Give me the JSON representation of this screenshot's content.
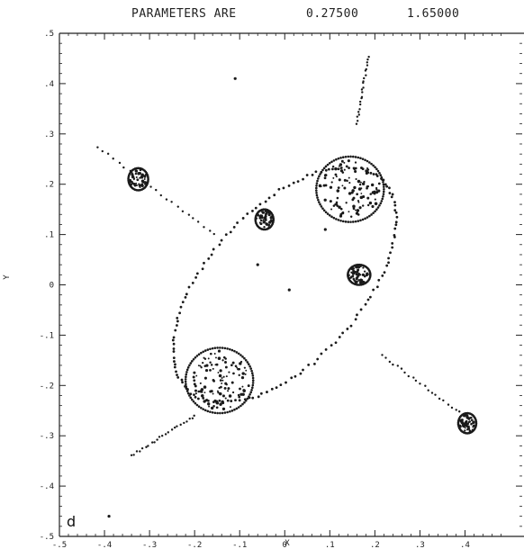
{
  "header": {
    "label": "PARAMETERS ARE",
    "param1": "0.27500",
    "param2": "1.65000"
  },
  "panel_letter": "d",
  "chart_data": {
    "type": "scatter",
    "title": "PARAMETERS ARE 0.27500 1.65000",
    "xlabel": "X",
    "ylabel": "Y",
    "xlim": [
      -0.5,
      0.5
    ],
    "ylim": [
      -0.5,
      0.5
    ],
    "x_ticks": [
      -0.5,
      -0.4,
      -0.3,
      -0.2,
      -0.1,
      0,
      0.1,
      0.2,
      0.3,
      0.4
    ],
    "x_tick_labels": [
      "-.5",
      "-.4",
      "-.3",
      "-.2",
      "-.1",
      "0",
      ".1",
      ".2",
      ".3",
      ".4"
    ],
    "y_ticks": [
      0.5,
      0.4,
      0.3,
      0.2,
      0.1,
      0,
      -0.1,
      -0.2,
      -0.3,
      -0.4,
      -0.5
    ],
    "y_tick_labels": [
      ".5",
      ".4",
      ".3",
      ".2",
      ".1",
      "0",
      "-.1",
      "-.2",
      "-.3",
      "-.4",
      "-.5"
    ],
    "grid": false,
    "point_color": "#1a1a1a",
    "rings": [
      {
        "cx": 0.145,
        "cy": 0.19,
        "rx": 0.075,
        "ry": 0.065,
        "angle": 0
      },
      {
        "cx": -0.145,
        "cy": -0.19,
        "rx": 0.075,
        "ry": 0.065,
        "angle": 0
      },
      {
        "cx": -0.325,
        "cy": 0.21,
        "rx": 0.022,
        "ry": 0.022,
        "angle": 0
      },
      {
        "cx": 0.405,
        "cy": -0.275,
        "rx": 0.02,
        "ry": 0.02,
        "angle": 0
      },
      {
        "cx": -0.045,
        "cy": 0.13,
        "rx": 0.02,
        "ry": 0.02,
        "angle": 0
      },
      {
        "cx": 0.165,
        "cy": 0.02,
        "rx": 0.025,
        "ry": 0.02,
        "angle": 0
      }
    ],
    "big_ellipse": {
      "cx": 0.0,
      "cy": 0.0,
      "rx": 0.3,
      "ry": 0.16,
      "angle_deg": 42
    },
    "spine_lines": [
      {
        "from": [
          -0.415,
          0.275
        ],
        "to": [
          -0.155,
          0.1
        ]
      },
      {
        "from": [
          0.185,
          0.455
        ],
        "to": [
          0.16,
          0.32
        ]
      },
      {
        "from": [
          0.215,
          -0.14
        ],
        "to": [
          0.405,
          -0.265
        ]
      },
      {
        "from": [
          -0.34,
          -0.34
        ],
        "to": [
          -0.2,
          -0.26
        ]
      }
    ],
    "isolated_points": [
      {
        "x": -0.06,
        "y": 0.04
      },
      {
        "x": 0.01,
        "y": -0.01
      },
      {
        "x": 0.09,
        "y": 0.11
      },
      {
        "x": -0.11,
        "y": 0.41
      },
      {
        "x": -0.39,
        "y": -0.46
      }
    ]
  }
}
